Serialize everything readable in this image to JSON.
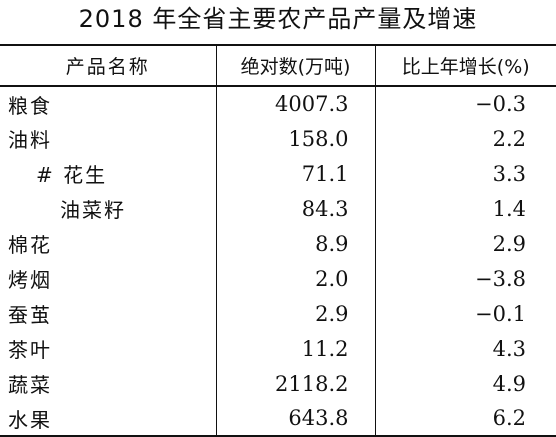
{
  "title": "2018 年全省主要农产品产量及增速",
  "columns": [
    "产品名称",
    "绝对数(万吨)",
    "比上年增长(%)"
  ],
  "rows": [
    {
      "name": "粮食",
      "absolute": "4007.3",
      "growth": "−0.3",
      "indent": 0
    },
    {
      "name": "油料",
      "absolute": "158.0",
      "growth": "2.2",
      "indent": 0
    },
    {
      "name": "# 花生",
      "absolute": "71.1",
      "growth": "3.3",
      "indent": 1
    },
    {
      "name": "油菜籽",
      "absolute": "84.3",
      "growth": "1.4",
      "indent": 2
    },
    {
      "name": "棉花",
      "absolute": "8.9",
      "growth": "2.9",
      "indent": 0
    },
    {
      "name": "烤烟",
      "absolute": "2.0",
      "growth": "−3.8",
      "indent": 0
    },
    {
      "name": "蚕茧",
      "absolute": "2.9",
      "growth": "−0.1",
      "indent": 0
    },
    {
      "name": "茶叶",
      "absolute": "11.2",
      "growth": "4.3",
      "indent": 0
    },
    {
      "name": "蔬菜",
      "absolute": "2118.2",
      "growth": "4.9",
      "indent": 0
    },
    {
      "name": "水果",
      "absolute": "643.8",
      "growth": "6.2",
      "indent": 0
    }
  ]
}
